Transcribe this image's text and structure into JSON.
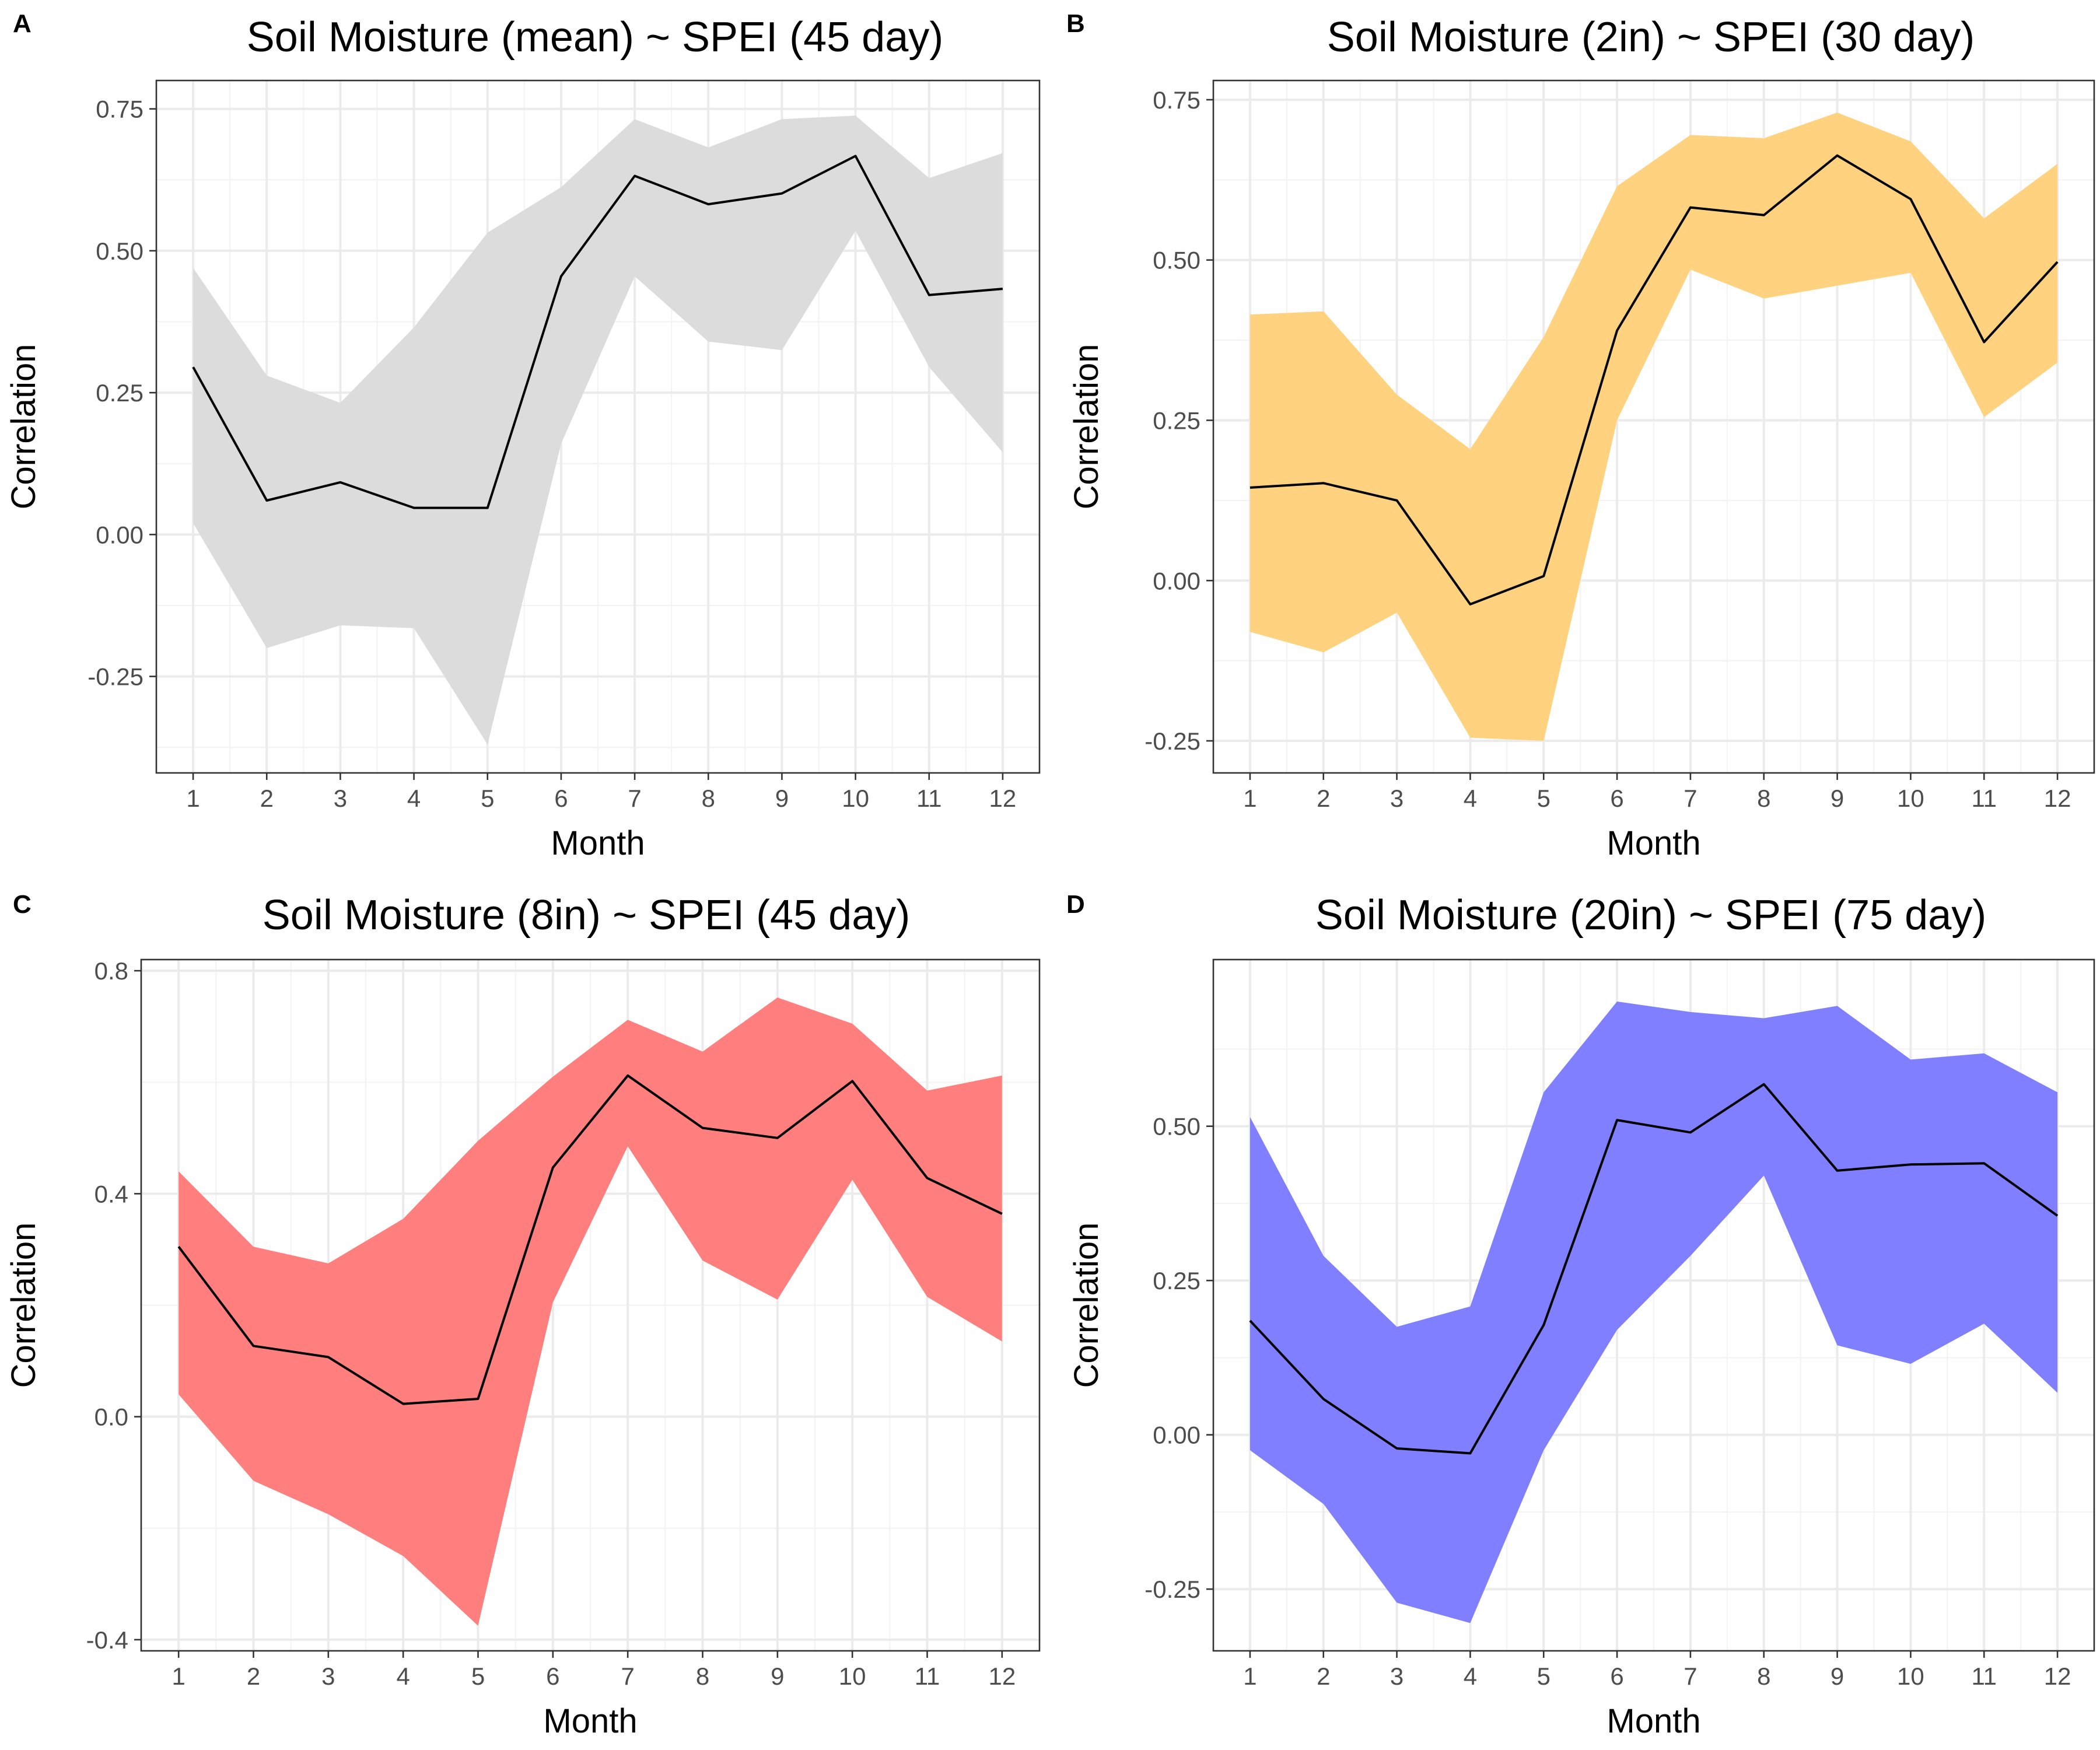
{
  "chart_data": [
    {
      "type": "line",
      "panel": "A",
      "title": "Soil Moisture (mean) ~ SPEI (45 day)",
      "xlabel": "Month",
      "ylabel": "Correlation",
      "x": [
        1,
        2,
        3,
        4,
        5,
        6,
        7,
        8,
        9,
        10,
        11,
        12
      ],
      "xlim": [
        0.5,
        12.5
      ],
      "ylim": [
        -0.42,
        0.8
      ],
      "yticks": [
        -0.25,
        0.0,
        0.25,
        0.5,
        0.75
      ],
      "ytick_labels": [
        "-0.25",
        "0.00",
        "0.25",
        "0.50",
        "0.75"
      ],
      "series": [
        {
          "values": [
            0.295,
            0.06,
            0.092,
            0.047,
            0.047,
            0.455,
            0.632,
            0.582,
            0.601,
            0.667,
            0.422,
            0.433
          ],
          "lower": [
            0.02,
            -0.2,
            -0.16,
            -0.165,
            -0.37,
            0.16,
            0.455,
            0.34,
            0.325,
            0.535,
            0.295,
            0.145
          ],
          "upper": [
            0.47,
            0.28,
            0.232,
            0.365,
            0.532,
            0.612,
            0.732,
            0.682,
            0.732,
            0.738,
            0.628,
            0.672
          ]
        }
      ],
      "ribbon_color": "#dcdcdc",
      "grid": true
    },
    {
      "type": "line",
      "panel": "B",
      "title": "Soil Moisture (2in) ~ SPEI (30 day)",
      "xlabel": "Month",
      "ylabel": "Correlation",
      "x": [
        1,
        2,
        3,
        4,
        5,
        6,
        7,
        8,
        9,
        10,
        11,
        12
      ],
      "xlim": [
        0.5,
        12.5
      ],
      "ylim": [
        -0.3,
        0.78
      ],
      "yticks": [
        -0.25,
        0.0,
        0.25,
        0.5,
        0.75
      ],
      "ytick_labels": [
        "-0.25",
        "0.00",
        "0.25",
        "0.50",
        "0.75"
      ],
      "series": [
        {
          "values": [
            0.145,
            0.152,
            0.125,
            -0.037,
            0.007,
            0.39,
            0.582,
            0.57,
            0.663,
            0.595,
            0.372,
            0.497
          ],
          "lower": [
            -0.08,
            -0.112,
            -0.05,
            -0.245,
            -0.25,
            0.25,
            0.485,
            0.44,
            0.46,
            0.48,
            0.255,
            0.34
          ],
          "upper": [
            0.415,
            0.42,
            0.29,
            0.205,
            0.38,
            0.615,
            0.695,
            0.69,
            0.73,
            0.685,
            0.565,
            0.65
          ]
        }
      ],
      "ribbon_color": "#fed27f",
      "grid": true
    },
    {
      "type": "line",
      "panel": "C",
      "title": "Soil Moisture (8in) ~ SPEI (45 day)",
      "xlabel": "Month",
      "ylabel": "Correlation",
      "x": [
        1,
        2,
        3,
        4,
        5,
        6,
        7,
        8,
        9,
        10,
        11,
        12
      ],
      "xlim": [
        0.5,
        12.5
      ],
      "ylim": [
        -0.42,
        0.82
      ],
      "yticks": [
        -0.4,
        0.0,
        0.4,
        0.8
      ],
      "ytick_labels": [
        "-0.4",
        "0.0",
        "0.4",
        "0.8"
      ],
      "series": [
        {
          "values": [
            0.305,
            0.127,
            0.107,
            0.023,
            0.032,
            0.447,
            0.612,
            0.518,
            0.5,
            0.602,
            0.428,
            0.364
          ],
          "lower": [
            0.04,
            -0.115,
            -0.175,
            -0.25,
            -0.375,
            0.205,
            0.485,
            0.28,
            0.21,
            0.425,
            0.215,
            0.135
          ],
          "upper": [
            0.44,
            0.305,
            0.275,
            0.355,
            0.495,
            0.61,
            0.712,
            0.655,
            0.752,
            0.705,
            0.585,
            0.612
          ]
        }
      ],
      "ribbon_color": "#ff7f7f",
      "grid": true
    },
    {
      "type": "line",
      "panel": "D",
      "title": "Soil Moisture (20in) ~ SPEI (75 day)",
      "xlabel": "Month",
      "ylabel": "Correlation",
      "x": [
        1,
        2,
        3,
        4,
        5,
        6,
        7,
        8,
        9,
        10,
        11,
        12
      ],
      "xlim": [
        0.5,
        12.5
      ],
      "ylim": [
        -0.35,
        0.77
      ],
      "yticks": [
        -0.25,
        0.0,
        0.25,
        0.5
      ],
      "ytick_labels": [
        "-0.25",
        "0.00",
        "0.25",
        "0.50"
      ],
      "series": [
        {
          "values": [
            0.185,
            0.058,
            -0.022,
            -0.03,
            0.178,
            0.51,
            0.49,
            0.568,
            0.428,
            0.438,
            0.44,
            0.355
          ],
          "lower": [
            -0.025,
            -0.112,
            -0.272,
            -0.305,
            -0.025,
            0.17,
            0.29,
            0.42,
            0.145,
            0.115,
            0.18,
            0.068
          ],
          "upper": [
            0.515,
            0.29,
            0.175,
            0.208,
            0.555,
            0.702,
            0.685,
            0.675,
            0.695,
            0.608,
            0.618,
            0.555
          ]
        }
      ],
      "ribbon_color": "#7f7fff",
      "grid": true
    }
  ]
}
